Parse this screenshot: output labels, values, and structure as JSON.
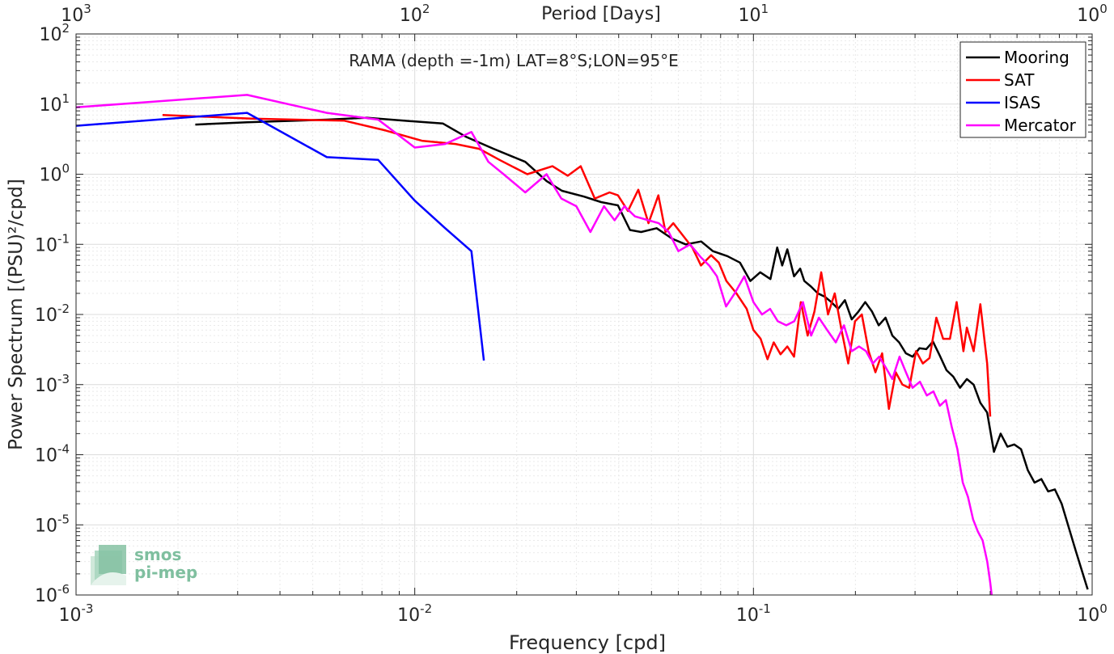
{
  "chart_data": {
    "type": "line",
    "title": "RAMA (depth =-1m) LAT=8°S;LON=95°E",
    "xlabel": "Frequency [cpd]",
    "ylabel": "Power Spectrum [(PSU)²/cpd]",
    "top_axis_label": "Period [Days]",
    "x_scale": "log",
    "y_scale": "log",
    "xlim": [
      0.001,
      1
    ],
    "ylim": [
      1e-06,
      100
    ],
    "grid": true,
    "legend_position": "top-right",
    "x_tick_labels": [
      {
        "value": 0.001,
        "base": "10",
        "exp": "-3"
      },
      {
        "value": 0.01,
        "base": "10",
        "exp": "-2"
      },
      {
        "value": 0.1,
        "base": "10",
        "exp": "-1"
      },
      {
        "value": 1,
        "base": "10",
        "exp": "0"
      }
    ],
    "y_tick_labels": [
      {
        "value": 1e-06,
        "base": "10",
        "exp": "-6"
      },
      {
        "value": 1e-05,
        "base": "10",
        "exp": "-5"
      },
      {
        "value": 0.0001,
        "base": "10",
        "exp": "-4"
      },
      {
        "value": 0.001,
        "base": "10",
        "exp": "-3"
      },
      {
        "value": 0.01,
        "base": "10",
        "exp": "-2"
      },
      {
        "value": 0.1,
        "base": "10",
        "exp": "-1"
      },
      {
        "value": 1,
        "base": "10",
        "exp": "0"
      },
      {
        "value": 10,
        "base": "10",
        "exp": "1"
      },
      {
        "value": 100,
        "base": "10",
        "exp": "2"
      }
    ],
    "top_tick_labels": [
      {
        "value": 0.001,
        "base": "10",
        "exp": "3"
      },
      {
        "value": 0.01,
        "base": "10",
        "exp": "2"
      },
      {
        "value": 0.1,
        "base": "10",
        "exp": "1"
      },
      {
        "value": 1,
        "base": "10",
        "exp": "0"
      }
    ],
    "series": [
      {
        "name": "Mooring",
        "color": "#000000",
        "x": [
          0.00225,
          0.0032,
          0.0055,
          0.0072,
          0.0093,
          0.0121,
          0.0142,
          0.0171,
          0.0212,
          0.0245,
          0.0272,
          0.0316,
          0.0355,
          0.0398,
          0.0432,
          0.0466,
          0.0518,
          0.0576,
          0.0631,
          0.0701,
          0.0759,
          0.0837,
          0.0912,
          0.0979,
          0.1047,
          0.1122,
          0.1175,
          0.1216,
          0.1259,
          0.1318,
          0.1374,
          0.1413,
          0.1479,
          0.1549,
          0.1622,
          0.1698,
          0.1778,
          0.1862,
          0.195,
          0.2042,
          0.2138,
          0.2239,
          0.2344,
          0.2455,
          0.257,
          0.2692,
          0.2818,
          0.2951,
          0.309,
          0.3236,
          0.3388,
          0.3548,
          0.3715,
          0.389,
          0.4074,
          0.4266,
          0.4467,
          0.4677,
          0.4898,
          0.5129,
          0.537,
          0.5623,
          0.5888,
          0.6166,
          0.6457,
          0.6761,
          0.7079,
          0.7413,
          0.7762,
          0.8128,
          0.8511,
          0.8913,
          0.9333,
          0.97
        ],
        "y": [
          5.1,
          5.5,
          6.0,
          6.4,
          5.8,
          5.3,
          3.4,
          2.3,
          1.5,
          0.8,
          0.58,
          0.48,
          0.4,
          0.36,
          0.16,
          0.15,
          0.17,
          0.12,
          0.1,
          0.11,
          0.08,
          0.068,
          0.055,
          0.03,
          0.04,
          0.032,
          0.09,
          0.05,
          0.085,
          0.035,
          0.045,
          0.03,
          0.025,
          0.02,
          0.018,
          0.015,
          0.012,
          0.016,
          0.0085,
          0.011,
          0.015,
          0.011,
          0.007,
          0.009,
          0.005,
          0.004,
          0.0028,
          0.0025,
          0.0033,
          0.0032,
          0.0041,
          0.0026,
          0.0016,
          0.0013,
          0.0009,
          0.0012,
          0.001,
          0.00055,
          0.0004,
          0.00011,
          0.0002,
          0.00013,
          0.00014,
          0.00012,
          6e-05,
          4e-05,
          4.5e-05,
          3e-05,
          3.2e-05,
          2e-05,
          9.5e-06,
          4.5e-06,
          2.2e-06,
          1.2e-06
        ]
      },
      {
        "name": "SAT",
        "color": "#ff0000",
        "x": [
          0.0018,
          0.0033,
          0.0062,
          0.0082,
          0.0105,
          0.0132,
          0.0155,
          0.0178,
          0.0215,
          0.0255,
          0.0283,
          0.0309,
          0.034,
          0.0376,
          0.0398,
          0.0426,
          0.0457,
          0.049,
          0.0524,
          0.055,
          0.058,
          0.063,
          0.066,
          0.07,
          0.075,
          0.079,
          0.0832,
          0.0891,
          0.0955,
          0.1,
          0.105,
          0.11,
          0.1148,
          0.1202,
          0.1259,
          0.1318,
          0.138,
          0.1445,
          0.1514,
          0.1585,
          0.166,
          0.1738,
          0.182,
          0.1905,
          0.1995,
          0.2089,
          0.2188,
          0.2291,
          0.2399,
          0.2512,
          0.263,
          0.2754,
          0.2884,
          0.302,
          0.3162,
          0.3311,
          0.3467,
          0.3631,
          0.3802,
          0.3981,
          0.4169,
          0.4266,
          0.4467,
          0.4677,
          0.4898,
          0.5
        ],
        "y": [
          7.0,
          6.2,
          5.8,
          4.2,
          3.0,
          2.7,
          2.3,
          1.6,
          1.0,
          1.3,
          0.95,
          1.3,
          0.45,
          0.55,
          0.5,
          0.3,
          0.6,
          0.2,
          0.5,
          0.15,
          0.2,
          0.12,
          0.09,
          0.05,
          0.07,
          0.055,
          0.03,
          0.02,
          0.012,
          0.006,
          0.0045,
          0.0023,
          0.004,
          0.0027,
          0.0035,
          0.0025,
          0.015,
          0.005,
          0.011,
          0.04,
          0.01,
          0.02,
          0.006,
          0.002,
          0.008,
          0.01,
          0.003,
          0.0015,
          0.0028,
          0.00045,
          0.0015,
          0.001,
          0.0009,
          0.003,
          0.002,
          0.0024,
          0.009,
          0.0045,
          0.0045,
          0.015,
          0.003,
          0.0065,
          0.003,
          0.014,
          0.002,
          0.00035
        ]
      },
      {
        "name": "ISAS",
        "color": "#0000ff",
        "x": [
          0.001,
          0.0032,
          0.0055,
          0.0078,
          0.01,
          0.0123,
          0.0147,
          0.016
        ],
        "y": [
          4.9,
          7.5,
          1.75,
          1.6,
          0.42,
          0.17,
          0.08,
          0.0022
        ]
      },
      {
        "name": "Mercator",
        "color": "#ff00ff",
        "x": [
          0.001,
          0.0032,
          0.0055,
          0.0078,
          0.01,
          0.0123,
          0.0147,
          0.0165,
          0.0183,
          0.0212,
          0.0245,
          0.0271,
          0.03,
          0.033,
          0.0362,
          0.0389,
          0.0416,
          0.0447,
          0.049,
          0.0525,
          0.0562,
          0.06,
          0.065,
          0.07,
          0.074,
          0.078,
          0.083,
          0.088,
          0.094,
          0.1,
          0.106,
          0.112,
          0.118,
          0.125,
          0.132,
          0.14,
          0.148,
          0.156,
          0.165,
          0.175,
          0.185,
          0.195,
          0.205,
          0.215,
          0.225,
          0.235,
          0.245,
          0.257,
          0.27,
          0.282,
          0.295,
          0.31,
          0.325,
          0.34,
          0.355,
          0.37,
          0.385,
          0.4,
          0.415,
          0.43,
          0.445,
          0.46,
          0.475,
          0.49,
          0.5,
          0.505
        ],
        "y": [
          9.0,
          13.5,
          7.5,
          6.0,
          2.4,
          2.7,
          4.0,
          1.5,
          1.0,
          0.55,
          1.0,
          0.45,
          0.35,
          0.15,
          0.35,
          0.22,
          0.35,
          0.25,
          0.22,
          0.2,
          0.15,
          0.08,
          0.1,
          0.065,
          0.05,
          0.035,
          0.013,
          0.02,
          0.035,
          0.015,
          0.01,
          0.012,
          0.008,
          0.007,
          0.008,
          0.015,
          0.005,
          0.009,
          0.006,
          0.004,
          0.007,
          0.003,
          0.0035,
          0.003,
          0.002,
          0.0025,
          0.0018,
          0.0012,
          0.0025,
          0.0015,
          0.0009,
          0.0011,
          0.0007,
          0.0008,
          0.0005,
          0.0006,
          0.00025,
          0.00012,
          4e-05,
          2.5e-05,
          1.2e-05,
          8e-06,
          6e-06,
          3e-06,
          1.5e-06,
          1e-06
        ]
      }
    ]
  },
  "logo": {
    "line1": "smos",
    "line2": "pi-mep",
    "color": "#7fbf9f"
  }
}
